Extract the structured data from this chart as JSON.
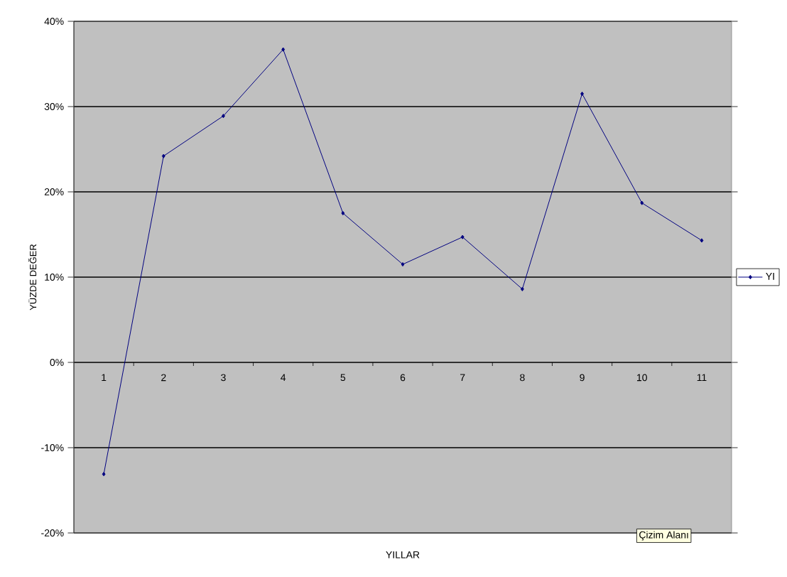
{
  "chart_data": {
    "type": "line",
    "xlabel": "YILLAR",
    "ylabel": "YÜZDE DEĞER",
    "categories": [
      "1",
      "2",
      "3",
      "4",
      "5",
      "6",
      "7",
      "8",
      "9",
      "10",
      "11"
    ],
    "series": [
      {
        "name": "YI",
        "color": "#000080",
        "values": [
          -13.1,
          24.2,
          28.9,
          36.7,
          17.5,
          11.5,
          14.7,
          8.6,
          31.5,
          18.7,
          14.3
        ]
      }
    ],
    "ylim": [
      -20,
      40
    ],
    "yticks": [
      {
        "value": -20,
        "label": "-20%"
      },
      {
        "value": -10,
        "label": "-10%"
      },
      {
        "value": 0,
        "label": "0%"
      },
      {
        "value": 10,
        "label": "10%"
      },
      {
        "value": 20,
        "label": "20%"
      },
      {
        "value": 30,
        "label": "30%"
      },
      {
        "value": 40,
        "label": "40%"
      }
    ],
    "grid": "y",
    "legend": "right",
    "marker": "diamond",
    "line_style": "solid",
    "annotations": [
      "Çizim Alanı"
    ]
  }
}
